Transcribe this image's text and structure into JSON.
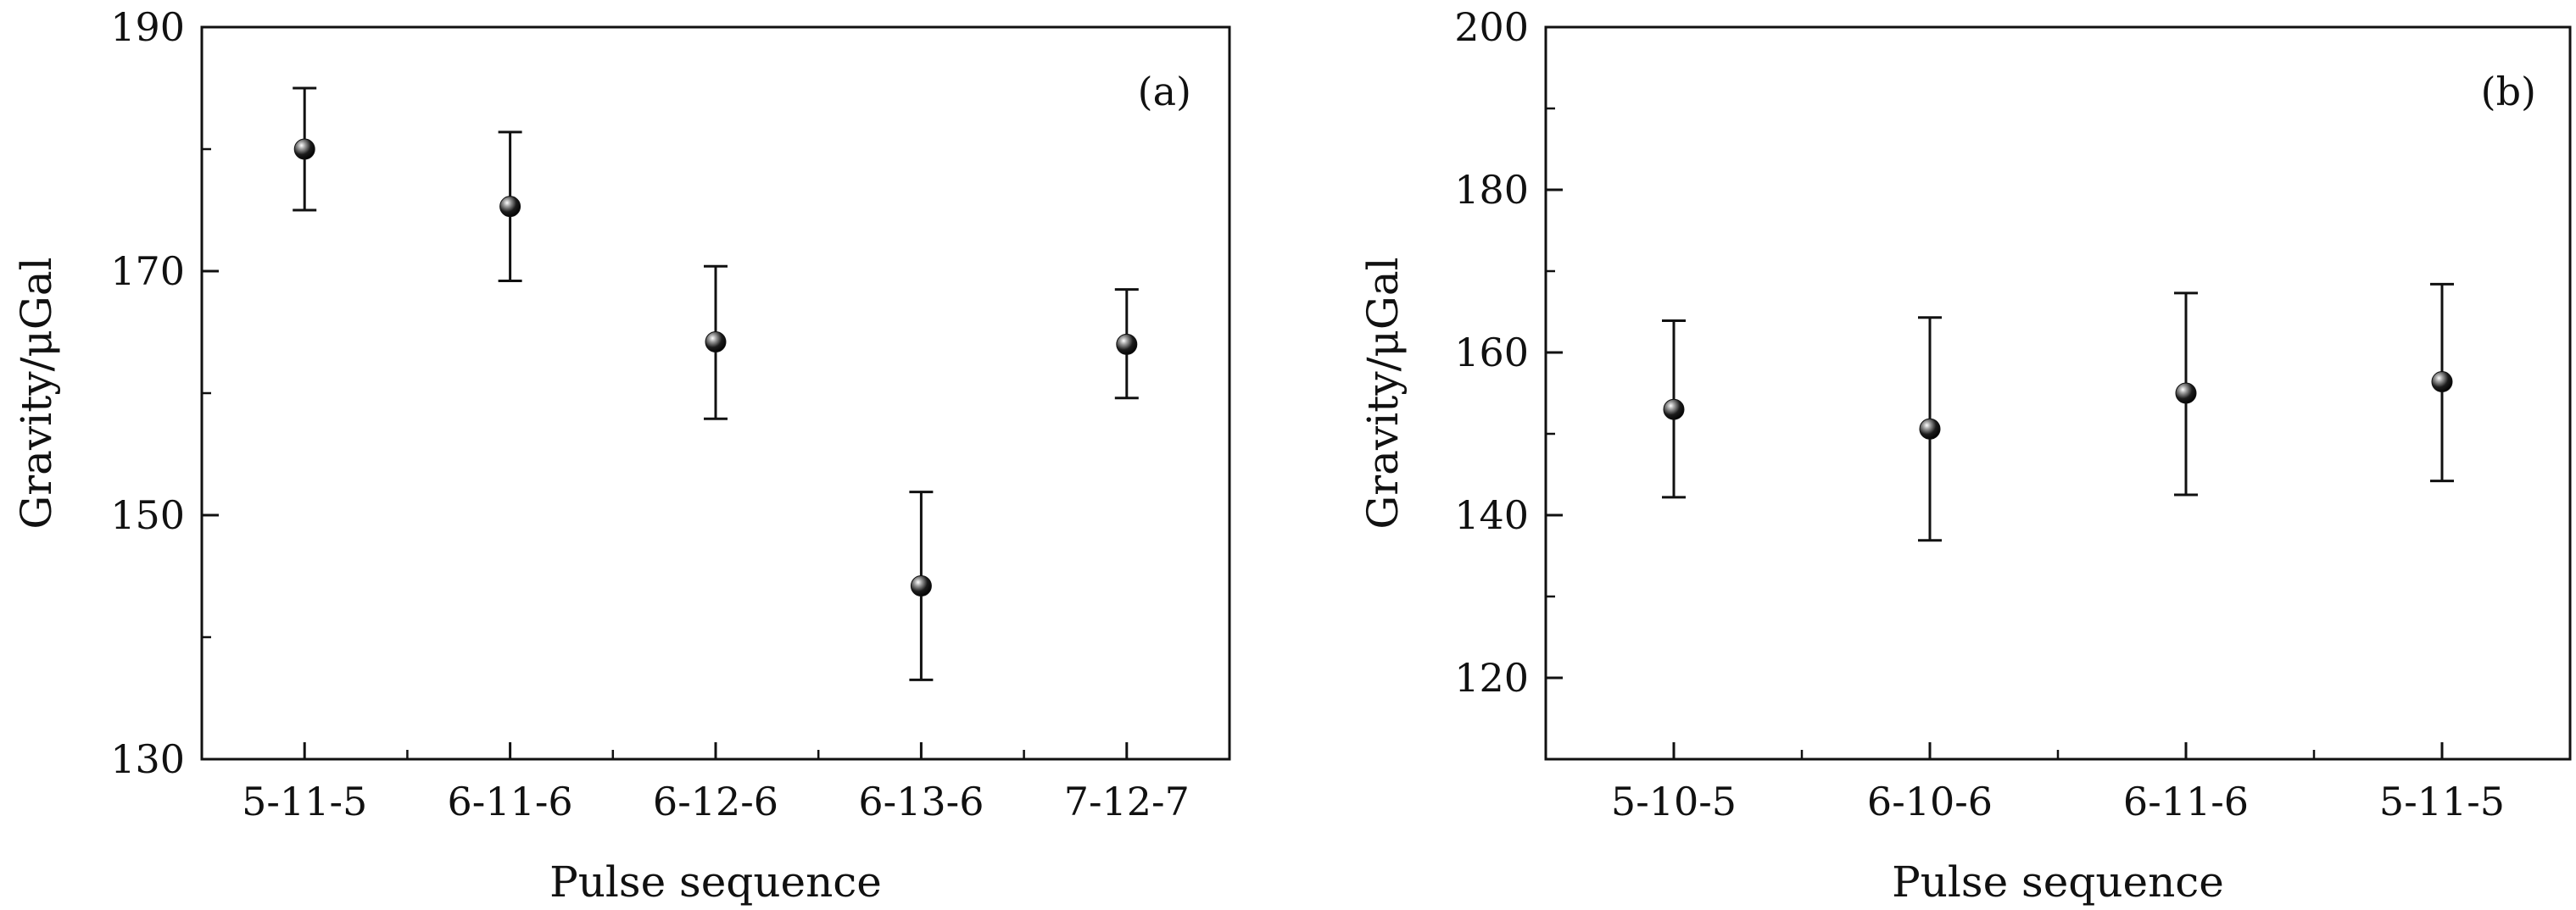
{
  "chart_data": [
    {
      "type": "scatter",
      "panel_label": "(a)",
      "xlabel": "Pulse sequence",
      "ylabel": "Gravity/μGal",
      "categories": [
        "5-11-5",
        "6-11-6",
        "6-12-6",
        "6-13-6",
        "7-12-7"
      ],
      "values": [
        180.0,
        175.3,
        164.2,
        144.2,
        164.0
      ],
      "err_low": [
        175.0,
        169.2,
        157.9,
        136.5,
        159.6
      ],
      "err_high": [
        185.0,
        181.4,
        170.4,
        151.9,
        168.5
      ],
      "ylim": [
        130,
        190
      ],
      "yticks": [
        "130",
        "150",
        "170",
        "190"
      ],
      "grid": false,
      "point_color": "#111111"
    },
    {
      "type": "scatter",
      "panel_label": "(b)",
      "xlabel": "Pulse sequence",
      "ylabel": "Gravity/μGal",
      "categories": [
        "5-10-5",
        "6-10-6",
        "6-11-6",
        "5-11-5"
      ],
      "values": [
        153.0,
        150.6,
        155.0,
        156.4
      ],
      "err_low": [
        142.2,
        136.9,
        142.5,
        144.2
      ],
      "err_high": [
        163.9,
        164.3,
        167.3,
        168.4
      ],
      "ylim": [
        110,
        200
      ],
      "yticks": [
        "120",
        "140",
        "160",
        "180",
        "200"
      ],
      "grid": false,
      "point_color": "#111111"
    }
  ]
}
